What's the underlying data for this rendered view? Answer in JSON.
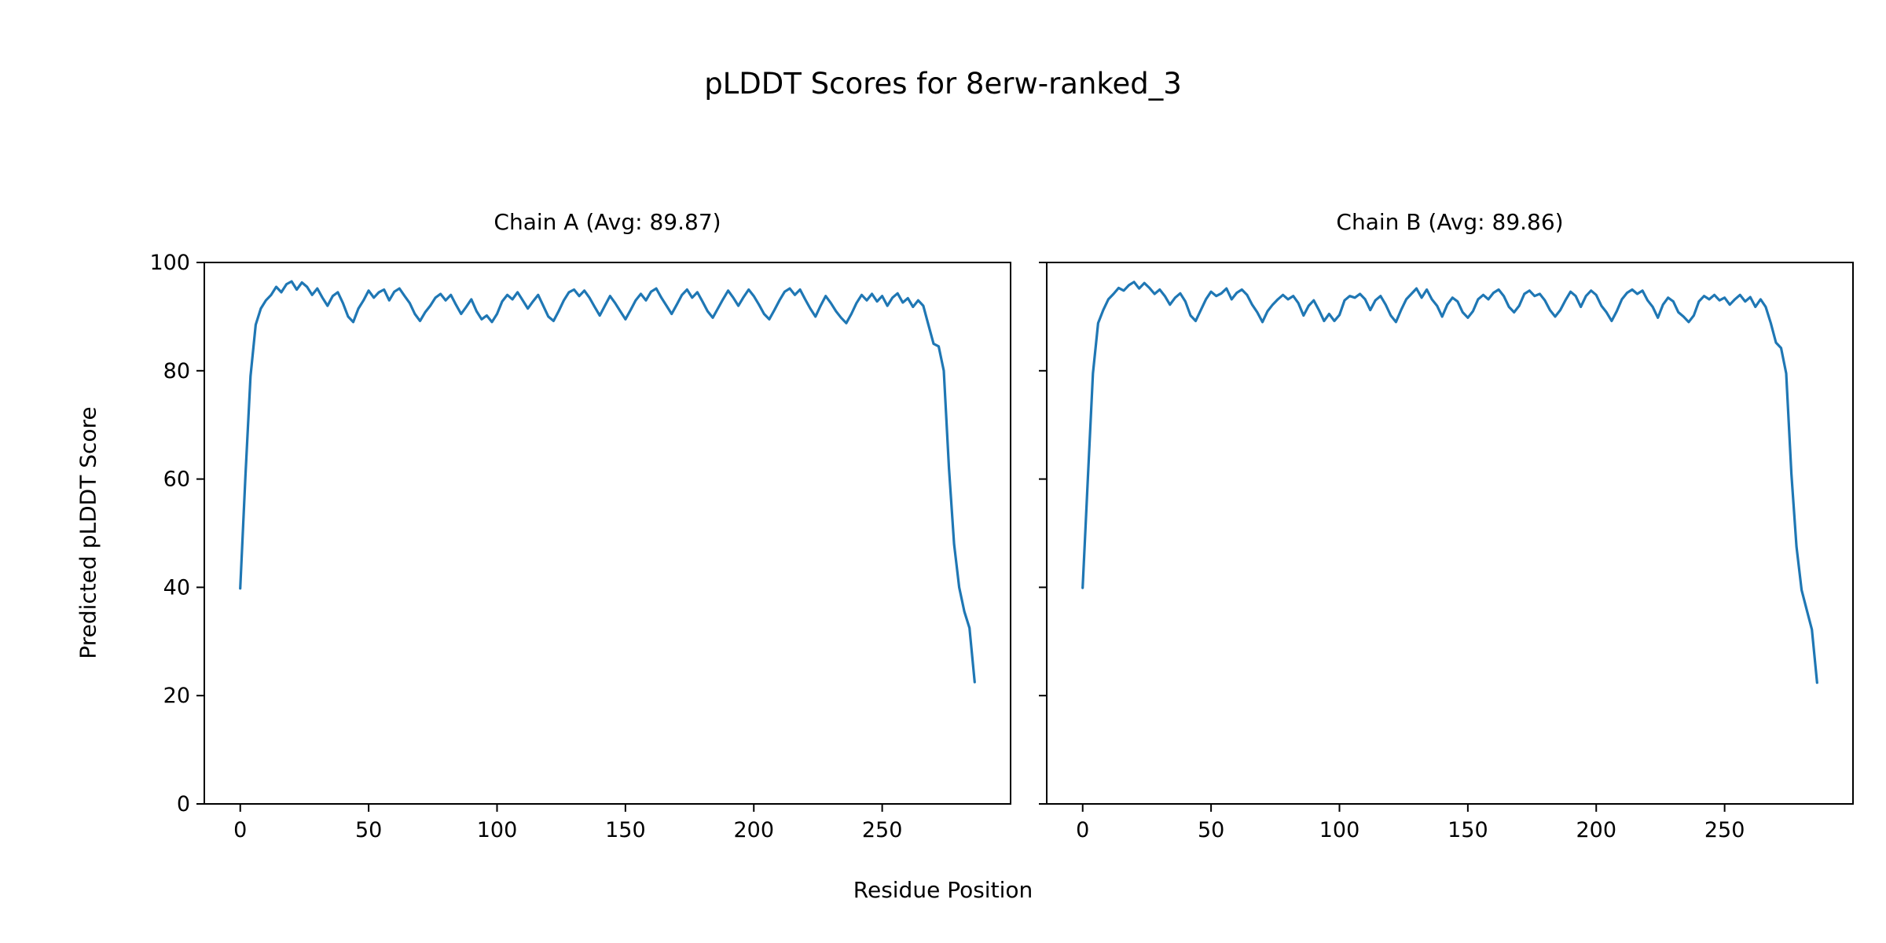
{
  "figure": {
    "title": "pLDDT Scores for 8erw-ranked_3",
    "xlabel": "Residue Position",
    "ylabel": "Predicted pLDDT Score"
  },
  "style": {
    "line_color": "#1f77b4",
    "axis_color": "#000000",
    "background": "#ffffff"
  },
  "chart_data": [
    {
      "type": "line",
      "title": "Chain A (Avg: 89.87)",
      "avg": 89.87,
      "xlim": [
        -14,
        300
      ],
      "ylim": [
        0,
        100
      ],
      "x_ticks": [
        0,
        50,
        100,
        150,
        200,
        250
      ],
      "y_ticks": [
        0,
        20,
        40,
        60,
        80,
        100
      ],
      "show_y_tick_labels": true,
      "x_start": 0,
      "x_step": 2,
      "values": [
        39.8,
        60.5,
        79.0,
        88.5,
        91.5,
        93.0,
        94.0,
        95.5,
        94.5,
        96.0,
        96.5,
        95.0,
        96.3,
        95.5,
        94.0,
        95.2,
        93.5,
        92.0,
        93.8,
        94.5,
        92.5,
        90.0,
        89.0,
        91.5,
        93.0,
        94.8,
        93.5,
        94.5,
        95.0,
        93.0,
        94.6,
        95.2,
        93.8,
        92.5,
        90.5,
        89.2,
        90.8,
        92.0,
        93.5,
        94.2,
        93.0,
        94.0,
        92.2,
        90.5,
        91.8,
        93.2,
        91.0,
        89.5,
        90.2,
        89.0,
        90.5,
        92.8,
        94.0,
        93.2,
        94.5,
        93.0,
        91.5,
        92.8,
        94.0,
        92.0,
        90.0,
        89.2,
        91.0,
        93.0,
        94.5,
        95.0,
        93.8,
        94.8,
        93.5,
        91.8,
        90.2,
        92.0,
        93.8,
        92.5,
        91.0,
        89.5,
        91.2,
        93.0,
        94.2,
        93.0,
        94.6,
        95.2,
        93.5,
        92.0,
        90.5,
        92.2,
        94.0,
        95.0,
        93.5,
        94.5,
        92.8,
        91.0,
        89.8,
        91.5,
        93.2,
        94.8,
        93.5,
        92.0,
        93.6,
        95.0,
        93.8,
        92.2,
        90.5,
        89.5,
        91.2,
        93.0,
        94.6,
        95.2,
        94.0,
        95.0,
        93.2,
        91.5,
        90.0,
        92.0,
        93.8,
        92.5,
        91.0,
        89.8,
        88.8,
        90.5,
        92.5,
        94.0,
        93.0,
        94.2,
        92.8,
        93.8,
        92.0,
        93.5,
        94.3,
        92.6,
        93.4,
        91.8,
        93.0,
        92.0,
        88.5,
        85.0,
        84.5,
        80.0,
        62.0,
        48.0,
        40.0,
        35.5,
        32.5,
        22.5
      ]
    },
    {
      "type": "line",
      "title": "Chain B (Avg: 89.86)",
      "avg": 89.86,
      "xlim": [
        -14,
        300
      ],
      "ylim": [
        0,
        100
      ],
      "x_ticks": [
        0,
        50,
        100,
        150,
        200,
        250
      ],
      "y_ticks": [
        0,
        20,
        40,
        60,
        80,
        100
      ],
      "show_y_tick_labels": false,
      "x_start": 0,
      "x_step": 2,
      "values": [
        39.9,
        60.0,
        79.5,
        88.8,
        91.2,
        93.2,
        94.2,
        95.3,
        94.8,
        95.8,
        96.4,
        95.2,
        96.2,
        95.3,
        94.2,
        95.0,
        93.8,
        92.2,
        93.5,
        94.3,
        92.8,
        90.2,
        89.2,
        91.2,
        93.2,
        94.6,
        93.8,
        94.3,
        95.2,
        93.2,
        94.4,
        95.0,
        94.0,
        92.2,
        90.8,
        89.0,
        91.0,
        92.2,
        93.2,
        94.0,
        93.2,
        93.8,
        92.5,
        90.2,
        92.0,
        93.0,
        91.2,
        89.2,
        90.5,
        89.2,
        90.3,
        93.0,
        93.8,
        93.5,
        94.2,
        93.2,
        91.2,
        93.0,
        93.8,
        92.2,
        90.2,
        89.0,
        91.2,
        93.2,
        94.2,
        95.2,
        93.5,
        95.0,
        93.2,
        92.0,
        90.0,
        92.2,
        93.5,
        92.8,
        90.8,
        89.8,
        91.0,
        93.2,
        94.0,
        93.2,
        94.4,
        95.0,
        93.8,
        91.8,
        90.8,
        92.0,
        94.2,
        94.8,
        93.8,
        94.2,
        93.0,
        91.2,
        90.0,
        91.2,
        93.0,
        94.6,
        93.8,
        91.8,
        93.8,
        94.8,
        94.0,
        92.0,
        90.8,
        89.2,
        91.0,
        93.2,
        94.4,
        95.0,
        94.2,
        94.8,
        93.0,
        91.8,
        89.8,
        92.2,
        93.5,
        92.8,
        90.8,
        90.0,
        89.0,
        90.2,
        92.8,
        93.8,
        93.2,
        94.0,
        93.0,
        93.5,
        92.2,
        93.2,
        94.0,
        92.8,
        93.6,
        91.8,
        93.2,
        91.8,
        88.8,
        85.2,
        84.2,
        79.5,
        61.0,
        47.5,
        39.5,
        35.8,
        32.2,
        22.4
      ]
    }
  ]
}
